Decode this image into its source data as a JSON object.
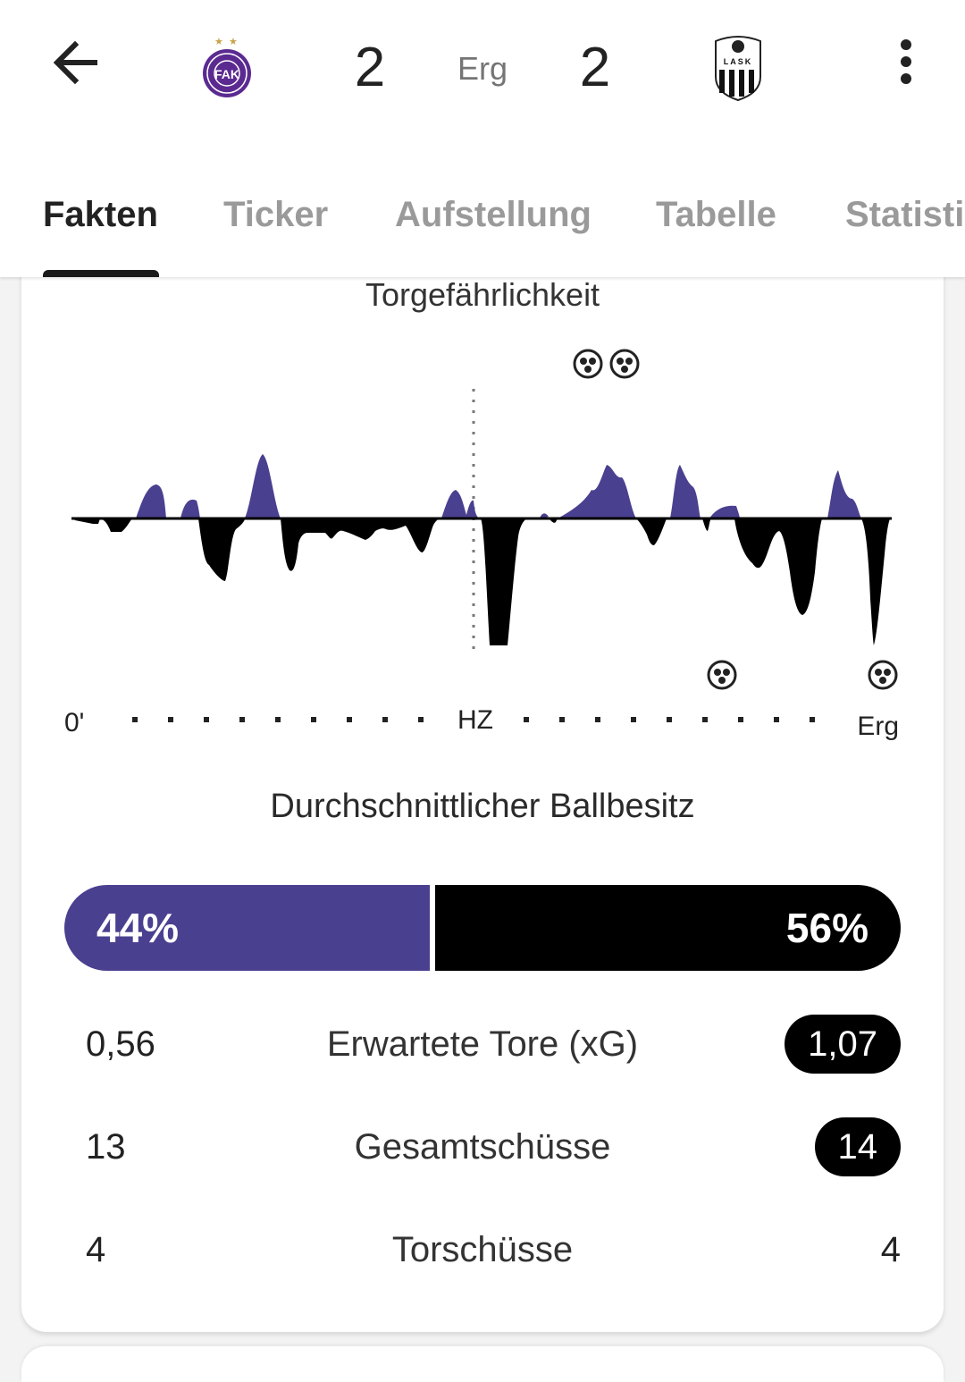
{
  "header": {
    "home_score": "2",
    "away_score": "2",
    "status": "Erg",
    "home_team_logo": "austria-wien-crest",
    "away_team_logo": "lask-crest",
    "home_logo_text": "FAK",
    "away_logo_text": "LASK",
    "back_icon": "arrow-left-icon",
    "more_icon": "more-vert-icon"
  },
  "tabs": [
    {
      "label": "Fakten",
      "active": true
    },
    {
      "label": "Ticker",
      "active": false
    },
    {
      "label": "Aufstellung",
      "active": false
    },
    {
      "label": "Tabelle",
      "active": false
    },
    {
      "label": "Statistik",
      "active": false
    }
  ],
  "momentum": {
    "title": "Torgefährlichkeit",
    "x_start": "0'",
    "x_half": "HZ",
    "x_end": "Erg",
    "home_goal_icon": "football-icon",
    "away_goal_icon": "football-icon",
    "home_color": "#4a4090",
    "away_color": "#000000"
  },
  "possession": {
    "title": "Durchschnittlicher Ballbesitz",
    "home_value": 44,
    "away_value": 56,
    "home_label": "44%",
    "away_label": "56%",
    "home_color": "#4a4090",
    "away_color": "#000000"
  },
  "stats": [
    {
      "label": "Erwartete Tore (xG)",
      "home": "0,56",
      "away": "1,07",
      "away_highlight": true
    },
    {
      "label": "Gesamtschüsse",
      "home": "13",
      "away": "14",
      "away_highlight": true
    },
    {
      "label": "Torschüsse",
      "home": "4",
      "away": "4",
      "away_highlight": false
    }
  ]
}
